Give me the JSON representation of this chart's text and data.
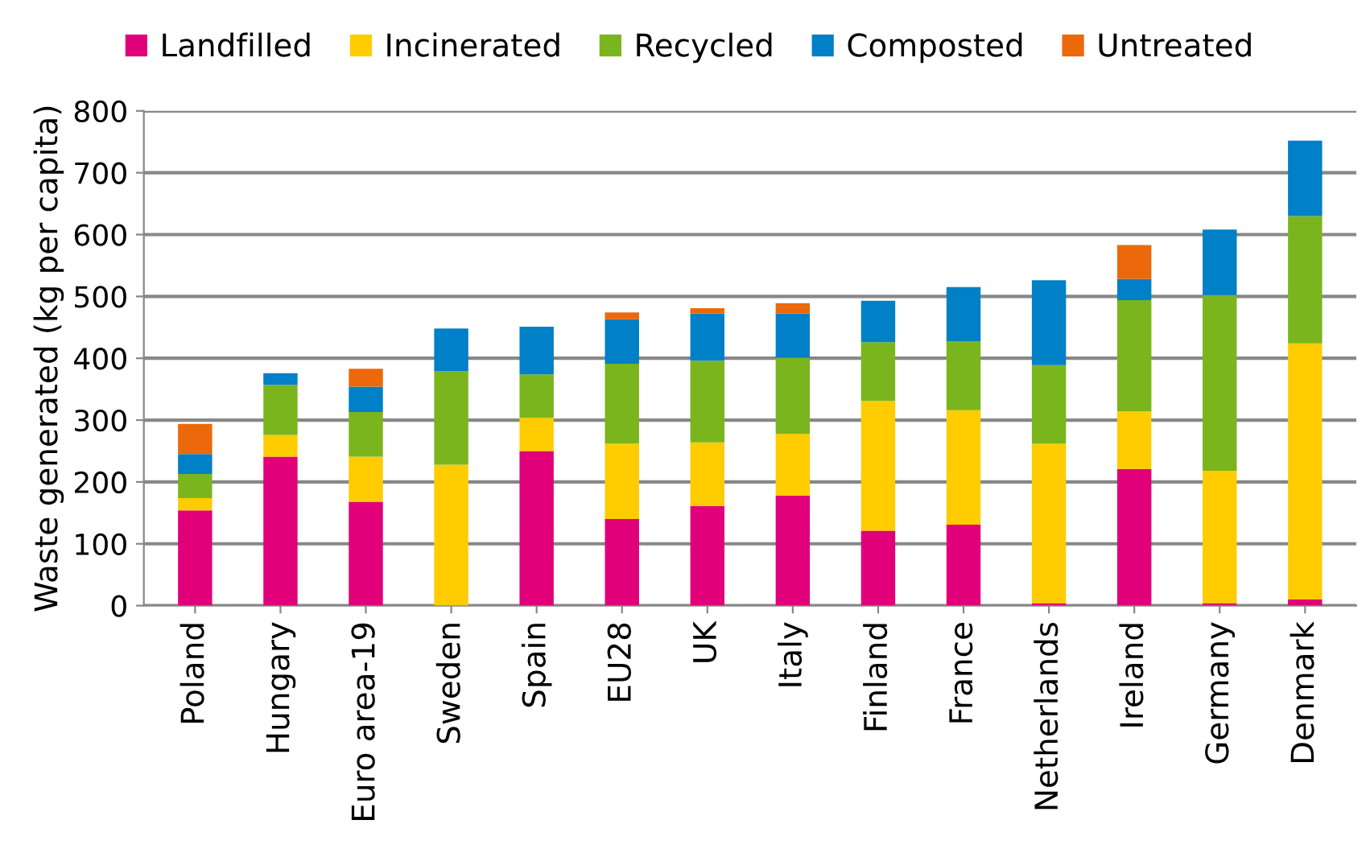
{
  "chart_data": {
    "type": "bar",
    "stacked": true,
    "ylabel": "Waste generated (kg per capita)",
    "categories": [
      "Poland",
      "Hungary",
      "Euro area-19",
      "Sweden",
      "Spain",
      "EU28",
      "UK",
      "Italy",
      "Finland",
      "France",
      "Netherlands",
      "Ireland",
      "Germany",
      "Denmark"
    ],
    "series": [
      {
        "name": "Landfilled",
        "color": "#e2007a",
        "values": [
          154,
          241,
          168,
          0,
          250,
          140,
          161,
          178,
          121,
          131,
          4,
          221,
          4,
          10
        ]
      },
      {
        "name": "Incinerated",
        "color": "#ffcc00",
        "values": [
          20,
          35,
          73,
          228,
          54,
          122,
          103,
          100,
          210,
          185,
          258,
          93,
          214,
          414
        ]
      },
      {
        "name": "Recycled",
        "color": "#7ab51d",
        "values": [
          39,
          81,
          72,
          151,
          70,
          129,
          132,
          123,
          95,
          111,
          127,
          180,
          284,
          206
        ]
      },
      {
        "name": "Composted",
        "color": "#0080c6",
        "values": [
          32,
          19,
          41,
          69,
          77,
          72,
          76,
          71,
          67,
          88,
          137,
          34,
          106,
          122
        ]
      },
      {
        "name": "Untreated",
        "color": "#eb690b",
        "values": [
          49,
          0,
          29,
          0,
          0,
          11,
          9,
          17,
          0,
          0,
          0,
          55,
          0,
          0
        ]
      }
    ],
    "ylim": [
      0,
      800
    ],
    "yticks": [
      0,
      100,
      200,
      300,
      400,
      500,
      600,
      700,
      800
    ],
    "grid": "y",
    "legend": "top"
  }
}
